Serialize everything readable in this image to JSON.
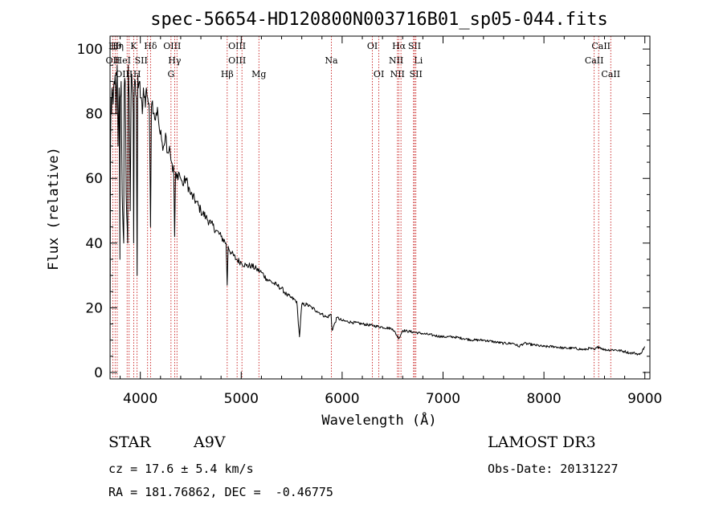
{
  "chart_data": {
    "type": "line",
    "title": "spec-56654-HD120800N003716B01_sp05-044.fits",
    "xlabel": "Wavelength (Å)",
    "ylabel": "Flux (relative)",
    "xlim": [
      3700,
      9050
    ],
    "ylim": [
      -2,
      104
    ],
    "x_ticks": [
      4000,
      5000,
      6000,
      7000,
      8000,
      9000
    ],
    "y_ticks": [
      0,
      20,
      40,
      60,
      80,
      100
    ],
    "grid": false,
    "series": [
      {
        "name": "spectrum",
        "x": [
          3700,
          3705,
          3710,
          3715,
          3720,
          3730,
          3740,
          3750,
          3760,
          3770,
          3780,
          3790,
          3798,
          3800,
          3810,
          3820,
          3835,
          3840,
          3850,
          3860,
          3875,
          3880,
          3890,
          3900,
          3910,
          3920,
          3930,
          3934,
          3940,
          3950,
          3960,
          3968,
          3975,
          3980,
          3990,
          4000,
          4010,
          4020,
          4030,
          4040,
          4050,
          4060,
          4080,
          4090,
          4101,
          4110,
          4120,
          4130,
          4150,
          4170,
          4190,
          4210,
          4230,
          4250,
          4270,
          4290,
          4310,
          4320,
          4330,
          4340,
          4350,
          4360,
          4380,
          4400,
          4420,
          4450,
          4500,
          4550,
          4600,
          4650,
          4700,
          4750,
          4800,
          4850,
          4861,
          4870,
          4900,
          4950,
          5000,
          5050,
          5100,
          5150,
          5200,
          5250,
          5300,
          5350,
          5400,
          5450,
          5500,
          5550,
          5577,
          5600,
          5650,
          5700,
          5750,
          5800,
          5850,
          5890,
          5900,
          5950,
          6000,
          6100,
          6200,
          6300,
          6400,
          6500,
          6563,
          6600,
          6700,
          6800,
          6900,
          7000,
          7100,
          7200,
          7300,
          7400,
          7500,
          7600,
          7700,
          7750,
          7800,
          7900,
          8000,
          8100,
          8200,
          8300,
          8400,
          8450,
          8500,
          8542,
          8600,
          8700,
          8800,
          8850,
          8900,
          8950,
          9000
        ],
        "values": [
          2,
          70,
          85,
          80,
          88,
          83,
          90,
          92,
          80,
          95,
          70,
          88,
          35,
          85,
          90,
          55,
          40,
          88,
          90,
          55,
          40,
          95,
          85,
          50,
          92,
          88,
          80,
          40,
          88,
          90,
          85,
          30,
          92,
          88,
          90,
          85,
          85,
          80,
          88,
          85,
          82,
          88,
          83,
          80,
          45,
          82,
          84,
          80,
          78,
          82,
          75,
          72,
          70,
          74,
          68,
          70,
          65,
          62,
          64,
          42,
          62,
          60,
          62,
          60,
          58,
          60,
          55,
          53,
          50,
          48,
          46,
          44,
          42,
          40,
          27,
          39,
          37,
          35,
          34,
          33,
          33,
          32,
          31,
          29,
          28,
          27,
          26,
          24,
          23,
          22,
          11,
          21,
          21,
          20,
          19,
          18,
          17,
          18,
          13,
          17,
          16,
          15.5,
          15,
          14.5,
          14,
          13.5,
          10.5,
          13,
          12.5,
          12,
          11.5,
          11,
          11,
          10.5,
          10,
          10,
          9.5,
          9,
          9,
          8,
          9,
          8.5,
          8,
          8,
          7.5,
          7.5,
          7,
          7.5,
          7,
          8,
          7,
          7,
          6.5,
          6,
          6,
          5.5,
          8
        ]
      }
    ],
    "lines": [
      {
        "label": "Hθ",
        "x": 3750,
        "row": 0,
        "dx": 0
      },
      {
        "label": "Hη",
        "x": 3771,
        "row": 0,
        "dx": 0
      },
      {
        "label": "K",
        "x": 3934,
        "row": 0,
        "dx": 0
      },
      {
        "label": "Hδ",
        "x": 4101,
        "row": 0,
        "dx": 0
      },
      {
        "label": "OIII",
        "x": 4363,
        "row": 0,
        "dx": -6
      },
      {
        "label": "OIII",
        "x": 4959,
        "row": 0,
        "dx": 0
      },
      {
        "label": "OI",
        "x": 6300,
        "row": 0,
        "dx": 0
      },
      {
        "label": "Hα",
        "x": 6563,
        "row": 0,
        "dx": 0
      },
      {
        "label": "SII",
        "x": 6717,
        "row": 0,
        "dx": 0
      },
      {
        "label": "CaII",
        "x": 8542,
        "row": 0,
        "dx": 3
      },
      {
        "label": "OII",
        "x": 3727,
        "row": 1,
        "dx": 0
      },
      {
        "label": "HeI",
        "x": 3889,
        "row": 1,
        "dx": -8
      },
      {
        "label": "SII",
        "x": 4072,
        "row": 1,
        "dx": -8
      },
      {
        "label": "Hγ",
        "x": 4340,
        "row": 1,
        "dx": 0
      },
      {
        "label": "OIII",
        "x": 5007,
        "row": 1,
        "dx": -6
      },
      {
        "label": "Na",
        "x": 5893,
        "row": 1,
        "dx": 0
      },
      {
        "label": "NII",
        "x": 6583,
        "row": 1,
        "dx": -6
      },
      {
        "label": "Li",
        "x": 6708,
        "row": 1,
        "dx": 6
      },
      {
        "label": "CaII",
        "x": 8498,
        "row": 1,
        "dx": 0
      },
      {
        "label": "OIII",
        "x": 3869,
        "row": 2,
        "dx": -4
      },
      {
        "label": "H",
        "x": 3968,
        "row": 2,
        "dx": 0
      },
      {
        "label": "G",
        "x": 4304,
        "row": 2,
        "dx": 0
      },
      {
        "label": "Hβ",
        "x": 4861,
        "row": 2,
        "dx": 0
      },
      {
        "label": "Mg",
        "x": 5175,
        "row": 2,
        "dx": 0
      },
      {
        "label": "OI",
        "x": 6364,
        "row": 2,
        "dx": 0
      },
      {
        "label": "NII",
        "x": 6548,
        "row": 2,
        "dx": 0
      },
      {
        "label": "SII",
        "x": 6731,
        "row": 2,
        "dx": 0
      },
      {
        "label": "CaII",
        "x": 8662,
        "row": 2,
        "dx": 0
      }
    ]
  },
  "info": {
    "class": "STAR",
    "subclass": "A9V",
    "survey": "LAMOST DR3",
    "cz": "cz = 17.6 ± 5.4 km/s",
    "obs_date": "Obs-Date: 20131227",
    "coords": "RA = 181.76862, DEC =  -0.46775"
  },
  "colors": {
    "axes": "#000000",
    "spectrum": "#000000",
    "lines": "#c00000"
  }
}
